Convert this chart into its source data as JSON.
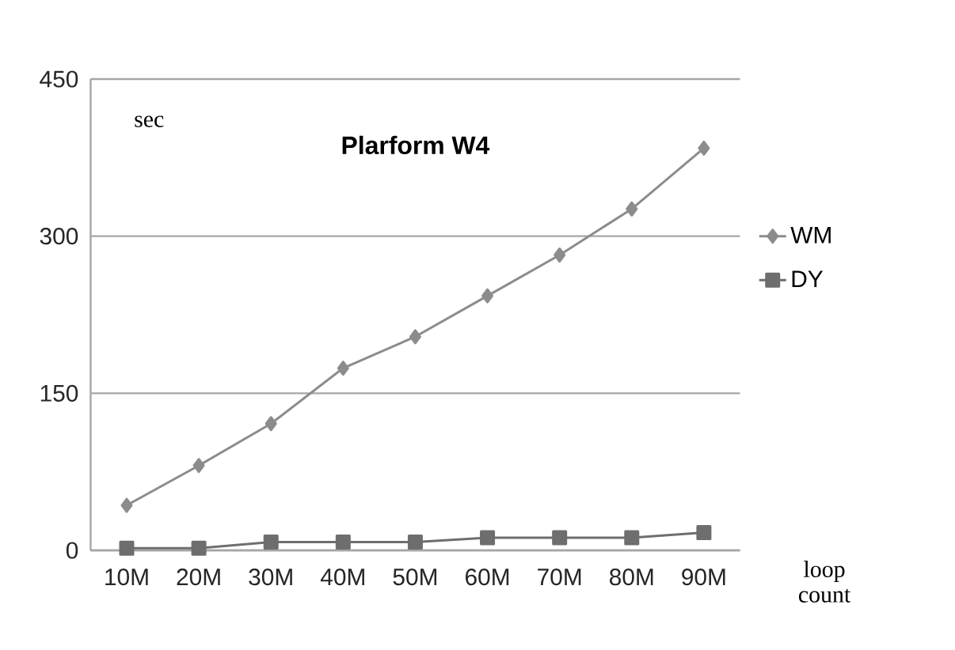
{
  "chart_data": {
    "type": "line",
    "title": "Plarform  W4",
    "ylabel": "sec",
    "xlabel": "loop count",
    "categories": [
      "10M",
      "20M",
      "30M",
      "40M",
      "50M",
      "60M",
      "70M",
      "80M",
      "90M"
    ],
    "series": [
      {
        "name": "WM",
        "color": "#8c8c8c",
        "marker": "diamond",
        "values": [
          43,
          81,
          121,
          174,
          204,
          243,
          282,
          326,
          384
        ]
      },
      {
        "name": "DY",
        "color": "#6e6e6e",
        "marker": "square",
        "values": [
          2,
          2,
          8,
          8,
          8,
          12,
          12,
          12,
          17
        ]
      }
    ],
    "ylim": [
      0,
      450
    ],
    "yticks": [
      0,
      150,
      300,
      450
    ],
    "grid": "y",
    "legend": "right",
    "line_style": "solid"
  }
}
